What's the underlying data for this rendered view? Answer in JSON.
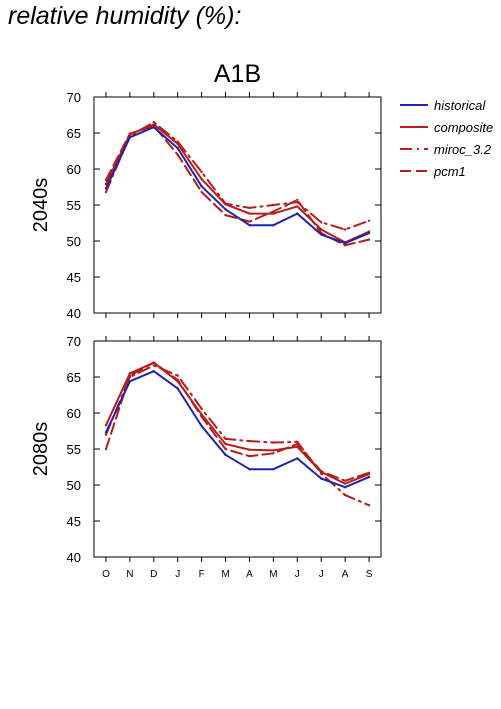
{
  "figure_title": "relative humidity (%):",
  "colors": {
    "historical": "#2222aa",
    "model": "#b81c1c",
    "axis": "#000000"
  },
  "chart_data": [
    {
      "type": "line",
      "title": "A1B",
      "ylabel": "2040s",
      "categories": [
        "O",
        "N",
        "D",
        "J",
        "F",
        "M",
        "A",
        "M",
        "J",
        "J",
        "A",
        "S"
      ],
      "ylim": [
        40,
        70
      ],
      "yticks": [
        40,
        45,
        50,
        55,
        60,
        65,
        70
      ],
      "grid": false,
      "legend": "right",
      "series": [
        {
          "name": "historical",
          "style": "solid",
          "values": [
            57.3,
            64.4,
            65.8,
            62.9,
            57.6,
            54.4,
            52.2,
            52.2,
            53.8,
            50.9,
            49.7,
            51.1
          ]
        },
        {
          "name": "composite",
          "style": "solid",
          "values": [
            57.9,
            64.8,
            66.2,
            63.5,
            58.6,
            55.1,
            53.8,
            53.8,
            54.8,
            51.6,
            49.8,
            51.3
          ]
        },
        {
          "name": "miroc_3.2",
          "style": "dashdot",
          "values": [
            56.8,
            64.6,
            66.5,
            63.8,
            59.6,
            55.2,
            54.6,
            55.0,
            55.4,
            52.6,
            51.6,
            52.8
          ]
        },
        {
          "name": "pcm1",
          "style": "dash",
          "values": [
            58.5,
            64.9,
            66.0,
            62.0,
            56.8,
            53.6,
            52.7,
            54.1,
            55.7,
            51.1,
            49.4,
            50.2
          ]
        }
      ]
    },
    {
      "type": "line",
      "title": "",
      "ylabel": "2080s",
      "categories": [
        "O",
        "N",
        "D",
        "J",
        "F",
        "M",
        "A",
        "M",
        "J",
        "J",
        "A",
        "S"
      ],
      "ylim": [
        40,
        70
      ],
      "yticks": [
        40,
        45,
        50,
        55,
        60,
        65,
        70
      ],
      "grid": false,
      "series": [
        {
          "name": "historical",
          "style": "solid",
          "values": [
            57.3,
            64.4,
            65.8,
            63.4,
            58.2,
            54.2,
            52.2,
            52.2,
            53.7,
            50.9,
            49.7,
            51.1
          ]
        },
        {
          "name": "composite",
          "style": "solid",
          "values": [
            58.3,
            65.5,
            67.0,
            64.4,
            59.8,
            55.7,
            54.9,
            54.8,
            55.3,
            51.8,
            50.2,
            51.5
          ]
        },
        {
          "name": "miroc_3.2",
          "style": "dashdot",
          "values": [
            57.0,
            65.0,
            66.6,
            65.2,
            60.6,
            56.4,
            56.1,
            55.9,
            56.0,
            51.6,
            48.6,
            47.2
          ]
        },
        {
          "name": "pcm1",
          "style": "dash",
          "values": [
            55.0,
            65.2,
            67.0,
            64.6,
            59.5,
            55.0,
            54.0,
            54.4,
            55.7,
            51.9,
            50.6,
            51.7
          ]
        }
      ]
    }
  ]
}
